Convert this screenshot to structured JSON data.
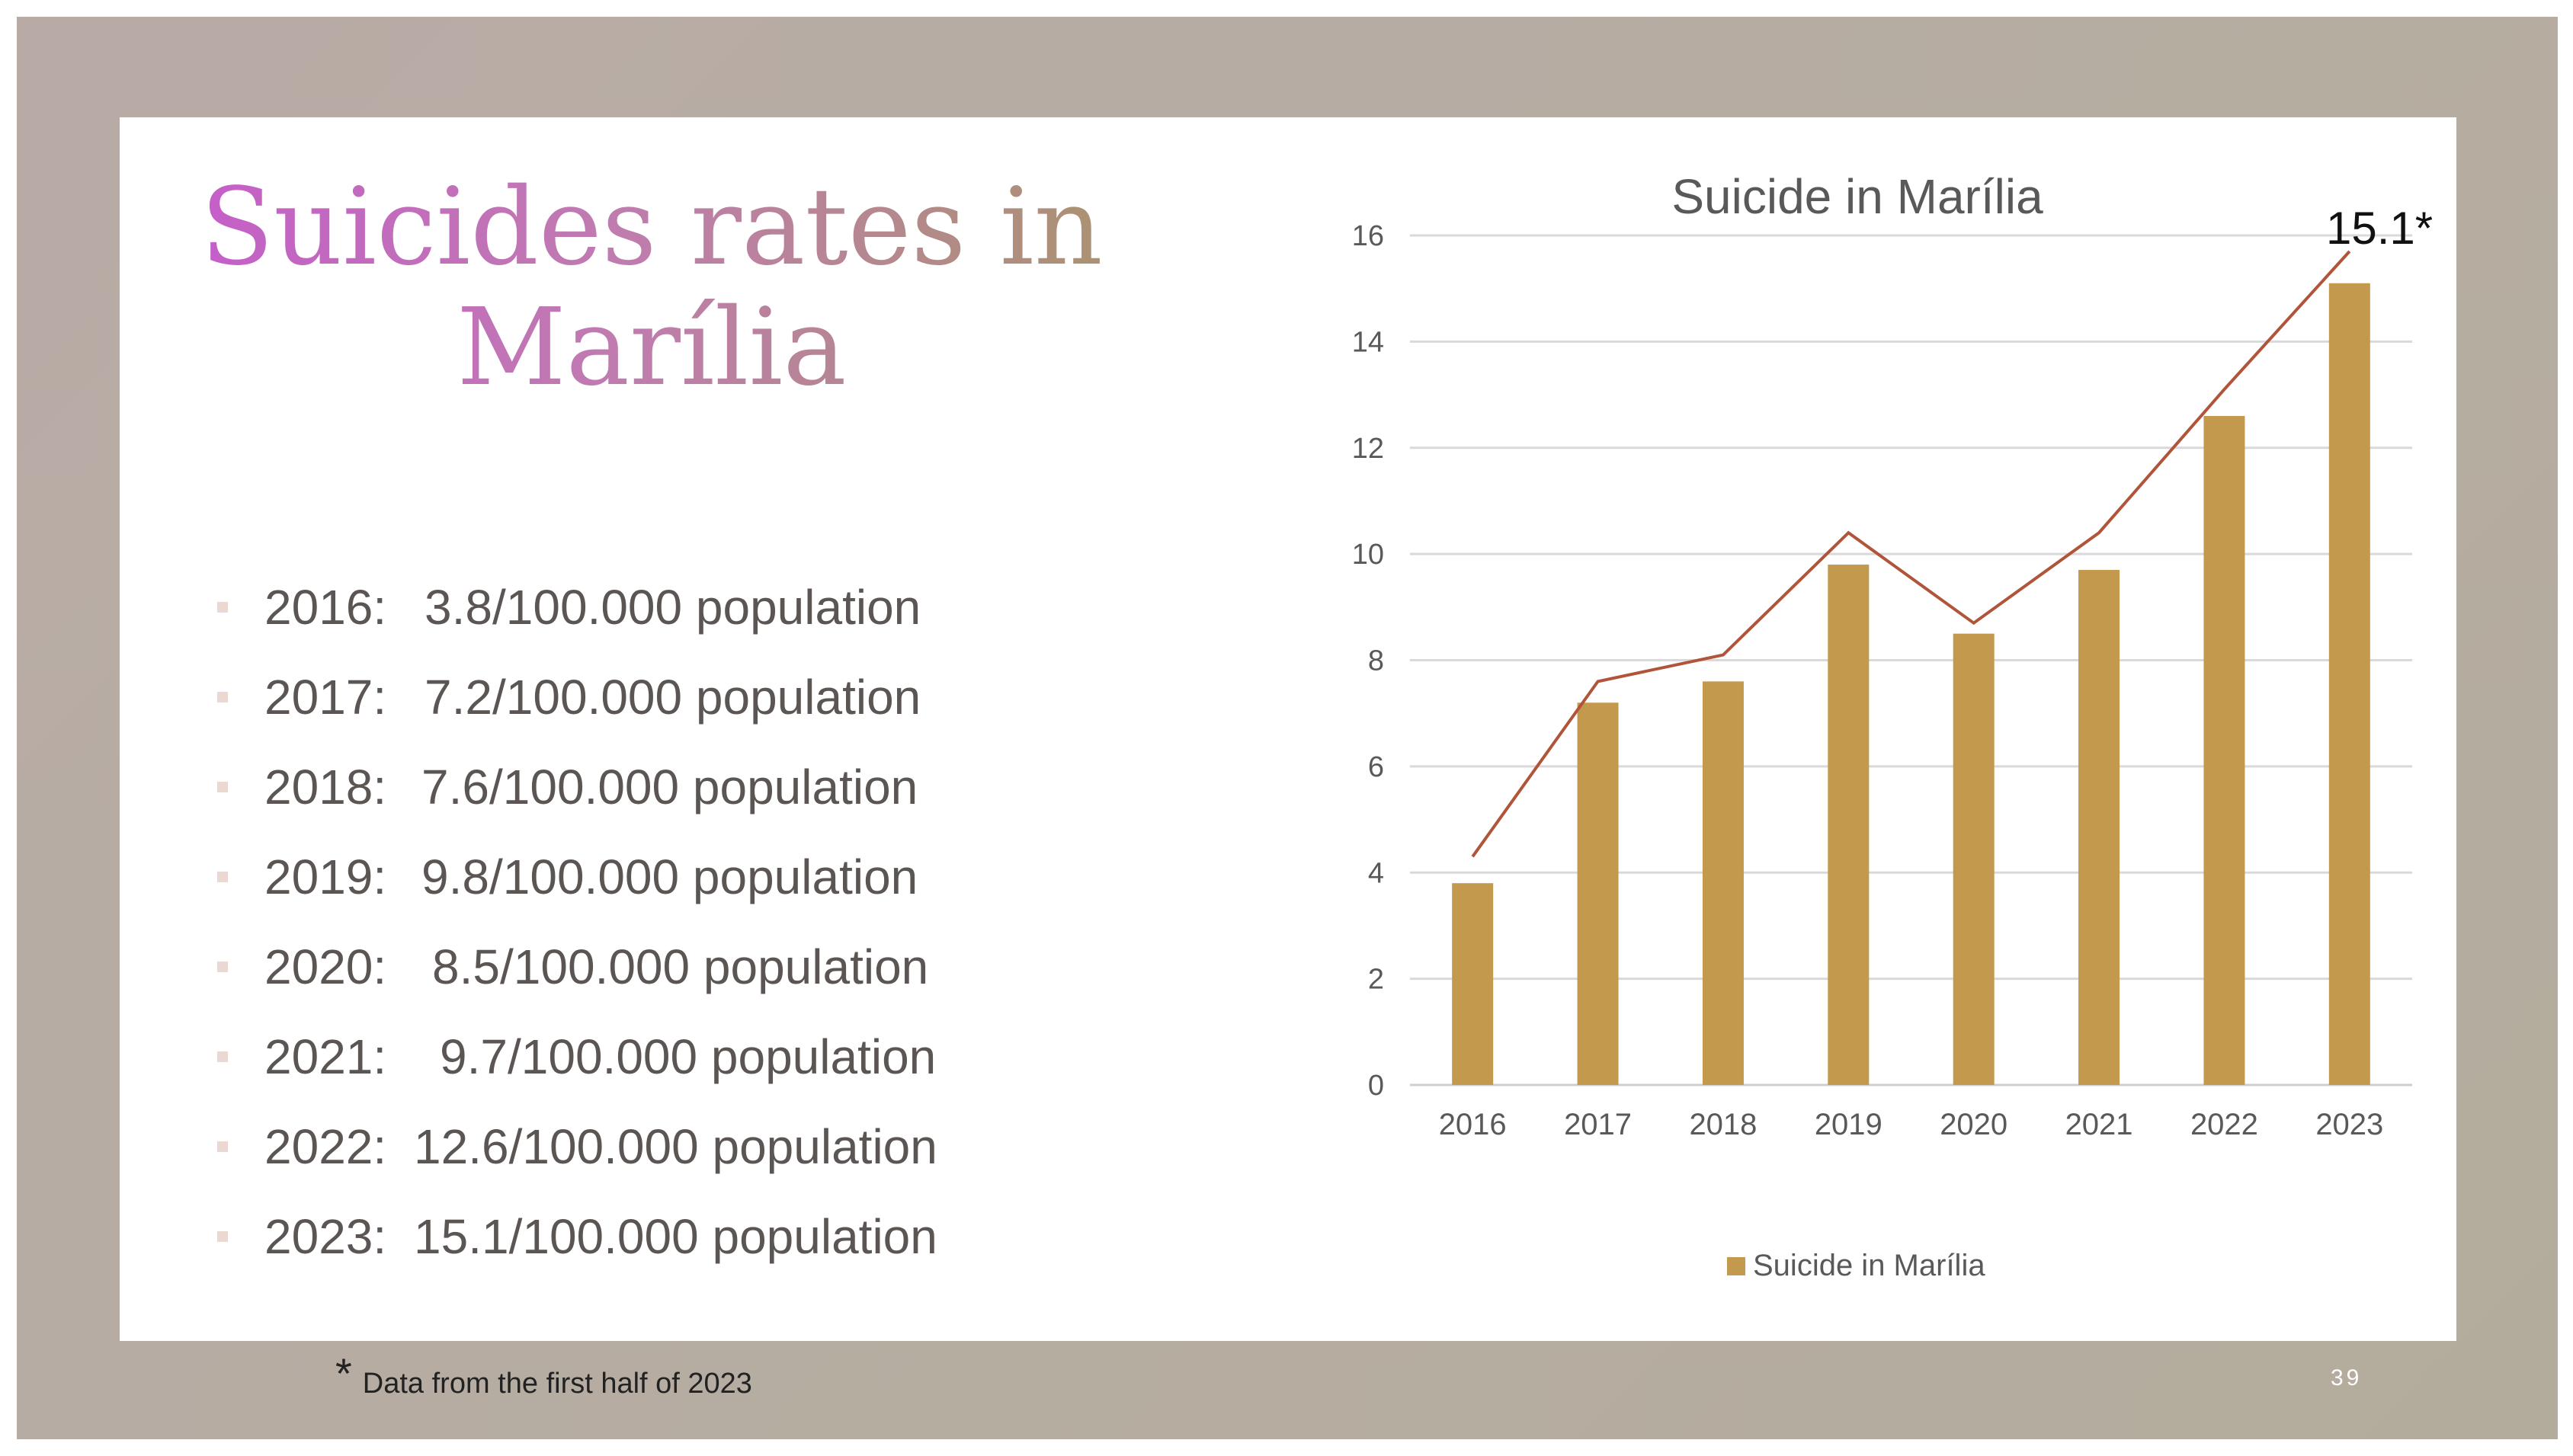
{
  "slide": {
    "title_lines": [
      "Suicides rates in",
      "Marília"
    ],
    "rates": [
      {
        "year": "2016:",
        "value": "3.8/100.000 population"
      },
      {
        "year": "2017:",
        "value": "7.2/100.000 population"
      },
      {
        "year": "2018:",
        "value": "7.6/100.000 population"
      },
      {
        "year": "2019:",
        "value": "9.8/100.000 population"
      },
      {
        "year": "2020:",
        "value": "8.5/100.000 population"
      },
      {
        "year": "2021:",
        "value": "9.7/100.000 population"
      },
      {
        "year": "2022:",
        "value": "12.6/100.000 population"
      },
      {
        "year": "2023:",
        "value": "15.1/100.000 population"
      }
    ],
    "footnote_mark": "*",
    "footnote_text": "Data from the first half of 2023",
    "page_number": "39"
  },
  "chart_data": {
    "type": "bar",
    "title": "Suicide in Marília",
    "categories": [
      "2016",
      "2017",
      "2018",
      "2019",
      "2020",
      "2021",
      "2022",
      "2023"
    ],
    "series": [
      {
        "name": "Suicide in Marília",
        "values": [
          3.8,
          7.2,
          7.6,
          9.8,
          8.5,
          9.7,
          12.6,
          15.1
        ],
        "color": "#c3994d"
      }
    ],
    "trend_line": {
      "values": [
        4.3,
        7.6,
        8.1,
        10.4,
        8.7,
        10.4,
        13.1,
        15.7
      ],
      "color": "#b0553a"
    },
    "annotation": "15.1*",
    "ylim": [
      0,
      16
    ],
    "yticks": [
      0,
      2,
      4,
      6,
      8,
      10,
      12,
      14,
      16
    ],
    "grid": true,
    "legend": "bottom"
  }
}
